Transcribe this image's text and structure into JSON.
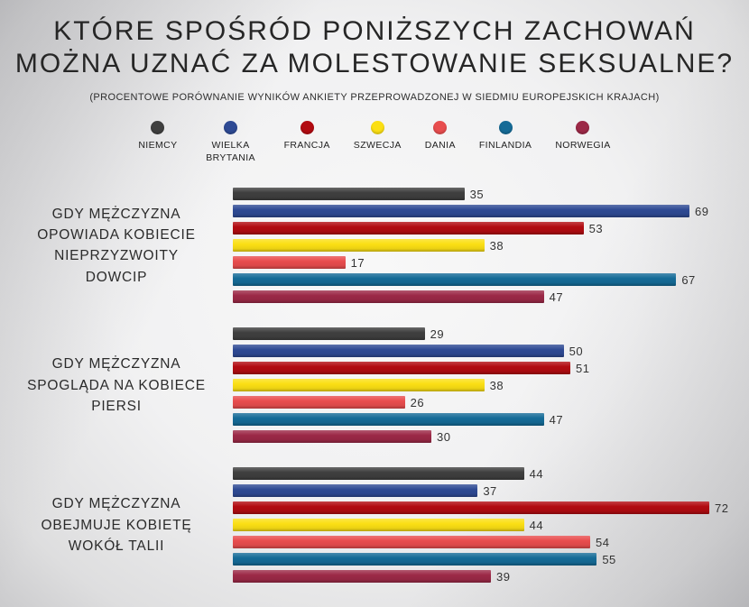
{
  "header": {
    "title_lines": [
      "KTÓRE SPOŚRÓD PONIŻSZYCH ZACHOWAŃ",
      "MOŻNA UZNAĆ ZA MOLESTOWANIE SEKSUALNE?"
    ],
    "subtitle": "(PROCENTOWE PORÓWNANIE WYNIKÓW ANKIETY PRZEPROWADZONEJ W SIEDMIU EUROPEJSKICH KRAJACH)"
  },
  "chart_data": {
    "type": "bar",
    "orientation": "horizontal",
    "title": "KTÓRE SPOŚRÓD PONIŻSZYCH ZACHOWAŃ MOŻNA UZNAĆ ZA MOLESTOWANIE SEKSUALNE?",
    "subtitle": "(PROCENTOWE PORÓWNANIE WYNIKÓW ANKIETY PRZEPROWADZONEJ W SIEDMIU EUROPEJSKICH KRAJACH)",
    "unit": "percent",
    "categories": [
      "GDY MĘŻCZYZNA OPOWIADA KOBIECIE NIEPRZYZWOITY DOWCIP",
      "GDY MĘŻCZYZNA SPOGLĄDA NA KOBIECE PIERSI",
      "GDY MĘŻCZYZNA OBEJMUJE KOBIETĘ WOKÓŁ TALII"
    ],
    "category_display_lines": [
      [
        "GDY MĘŻCZYZNA",
        "OPOWIADA KOBIECIE",
        "NIEPRZYZWOITY",
        "DOWCIP"
      ],
      [
        "GDY MĘŻCZYZNA",
        "SPOGLĄDA NA KOBIECE",
        "PIERSI"
      ],
      [
        "GDY MĘŻCZYZNA",
        "OBEJMUJE KOBIETĘ",
        "WOKÓŁ TALII"
      ]
    ],
    "series": [
      {
        "name": "NIEMCY",
        "color": "#3f3f3f",
        "values": [
          35,
          29,
          44
        ]
      },
      {
        "name": "WIELKA BRYTANIA",
        "color": "#2e4a94",
        "values": [
          69,
          50,
          37
        ]
      },
      {
        "name": "FRANCJA",
        "color": "#b20b11",
        "values": [
          53,
          51,
          72
        ]
      },
      {
        "name": "SZWECJA",
        "color": "#fbdf14",
        "values": [
          38,
          38,
          44
        ]
      },
      {
        "name": "DANIA",
        "color": "#e84d4e",
        "values": [
          17,
          26,
          54
        ]
      },
      {
        "name": "FINLANDIA",
        "color": "#156b97",
        "values": [
          67,
          47,
          55
        ]
      },
      {
        "name": "NORWEGIA",
        "color": "#9c2947",
        "values": [
          47,
          30,
          39
        ]
      }
    ],
    "xlim": [
      0,
      78
    ],
    "value_labels": true,
    "legend_position": "top",
    "grid": false,
    "axes_visible": false
  }
}
